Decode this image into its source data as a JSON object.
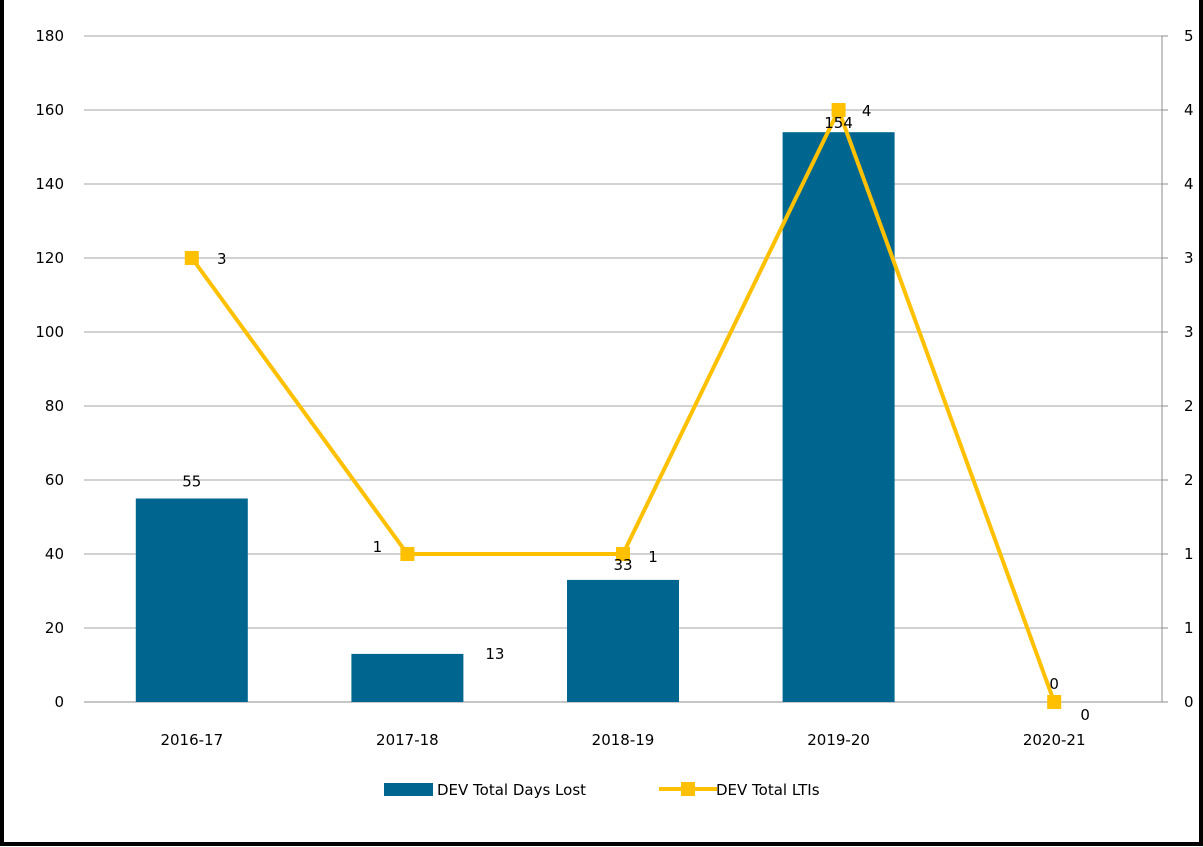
{
  "chart_data": {
    "type": "bar",
    "categories": [
      "2016-17",
      "2017-18",
      "2018-19",
      "2019-20",
      "2020-21"
    ],
    "series": [
      {
        "name": "DEV Total Days Lost",
        "type": "bar",
        "axis": "left",
        "values": [
          55,
          13,
          33,
          154,
          0
        ],
        "labels": [
          "55",
          "13",
          "33",
          "154",
          ""
        ],
        "color": "#00668f"
      },
      {
        "name": "DEV Total LTIs",
        "type": "line",
        "axis": "right",
        "values": [
          3,
          1,
          1,
          4,
          0
        ],
        "labels": [
          "3",
          "1",
          "1",
          "4",
          "0"
        ],
        "color": "#ffc000"
      }
    ],
    "left_axis": {
      "min": 0,
      "max": 180,
      "ticks": [
        0,
        20,
        40,
        60,
        80,
        100,
        120,
        140,
        160,
        180
      ]
    },
    "right_axis": {
      "min": 0,
      "max": 4.5,
      "tick_values": [
        0,
        0.5,
        1,
        1.5,
        2,
        2.5,
        3,
        3.5,
        4,
        4.5
      ],
      "tick_labels": [
        "0",
        "1",
        "1",
        "2",
        "2",
        "3",
        "3",
        "4",
        "4",
        "5"
      ]
    },
    "extra_labels": [
      "0"
    ],
    "grid": true,
    "legend": "bottom"
  }
}
